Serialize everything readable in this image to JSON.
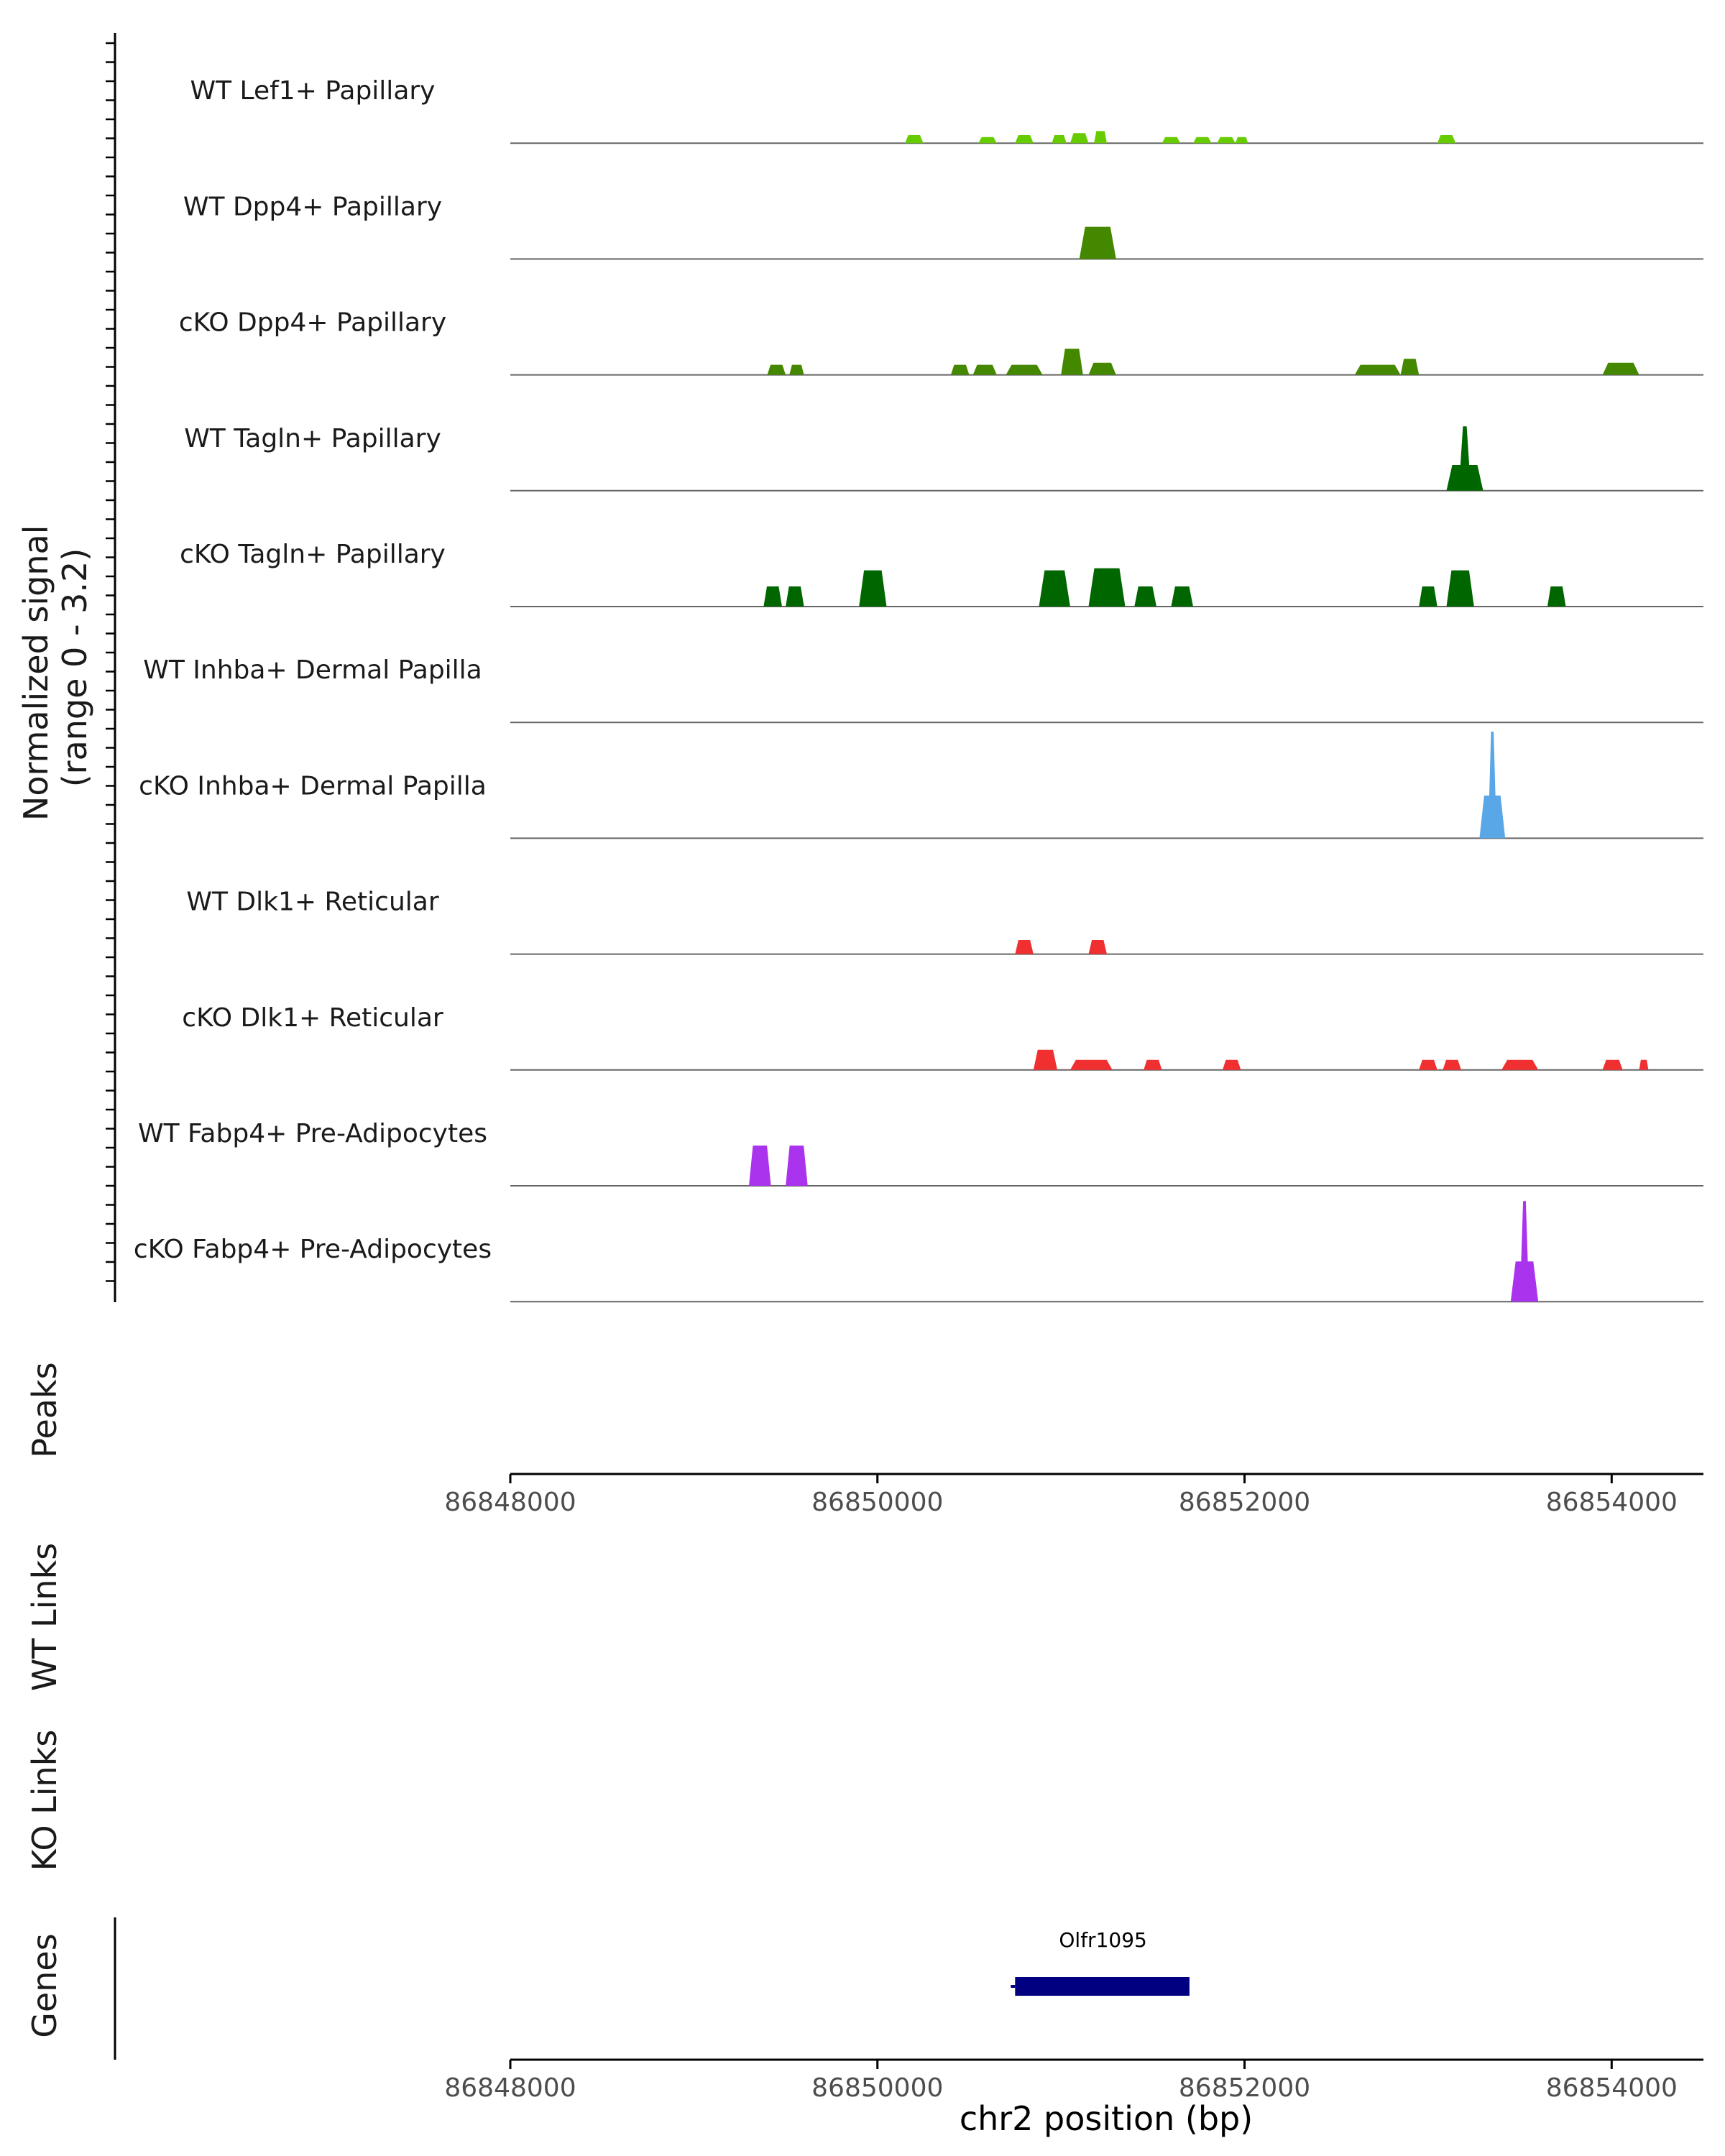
{
  "chart_data": {
    "type": "area",
    "title": "",
    "xlabel": "chr2 position (bp)",
    "coverage_ylabel": "Normalized signal\n(range 0 - 3.2)",
    "coverage_ylim": [
      0,
      3.2
    ],
    "xlim": [
      86848000,
      86854500
    ],
    "x_ticks": [
      86848000,
      86850000,
      86852000,
      86854000
    ],
    "x_tick_labels": [
      "86848000",
      "86850000",
      "86852000",
      "86854000"
    ],
    "series": [
      {
        "name": "WT Lef1+ Papillary",
        "color": "#66CC00",
        "peaks": [
          [
            86850150,
            86850250,
            0.4
          ],
          [
            86850550,
            86850650,
            0.3
          ],
          [
            86850750,
            86850850,
            0.4
          ],
          [
            86850950,
            86851030,
            0.4
          ],
          [
            86851050,
            86851150,
            0.5
          ],
          [
            86851180,
            86851250,
            0.6
          ],
          [
            86851550,
            86851650,
            0.3
          ],
          [
            86851720,
            86851820,
            0.3
          ],
          [
            86851850,
            86851950,
            0.3
          ],
          [
            86851950,
            86852020,
            0.3
          ],
          [
            86853050,
            86853150,
            0.4
          ]
        ]
      },
      {
        "name": "WT Dpp4+ Papillary",
        "color": "#448800",
        "peaks": [
          [
            86851100,
            86851300,
            1.6
          ]
        ]
      },
      {
        "name": "cKO Dpp4+ Papillary",
        "color": "#448800",
        "peaks": [
          [
            86849400,
            86849500,
            0.5
          ],
          [
            86849520,
            86849600,
            0.5
          ],
          [
            86850400,
            86850500,
            0.5
          ],
          [
            86850520,
            86850650,
            0.5
          ],
          [
            86850700,
            86850900,
            0.5
          ],
          [
            86851000,
            86851120,
            1.3
          ],
          [
            86851150,
            86851300,
            0.6
          ],
          [
            86852600,
            86852850,
            0.5
          ],
          [
            86852850,
            86852950,
            0.8
          ],
          [
            86853950,
            86854150,
            0.6
          ]
        ]
      },
      {
        "name": "WT Tagln+ Papillary",
        "color": "#006600",
        "peaks": [
          [
            86853100,
            86853300,
            3.2
          ]
        ]
      },
      {
        "name": "cKO Tagln+ Papillary",
        "color": "#006600",
        "peaks": [
          [
            86849380,
            86849480,
            1.0
          ],
          [
            86849500,
            86849600,
            1.0
          ],
          [
            86849900,
            86850050,
            1.8
          ],
          [
            86850880,
            86851050,
            1.8
          ],
          [
            86851150,
            86851350,
            1.9
          ],
          [
            86851400,
            86851520,
            1.0
          ],
          [
            86851600,
            86851720,
            1.0
          ],
          [
            86852950,
            86853050,
            1.0
          ],
          [
            86853100,
            86853250,
            1.8
          ],
          [
            86853650,
            86853750,
            1.0
          ]
        ]
      },
      {
        "name": "WT Inhba+ Dermal Papilla",
        "color": "#5AA7E8",
        "peaks": []
      },
      {
        "name": "cKO Inhba+ Dermal Papilla",
        "color": "#5AA7E8",
        "peaks": [
          [
            86853280,
            86853420,
            5.3
          ]
        ]
      },
      {
        "name": "WT Dlk1+ Reticular",
        "color": "#F03030",
        "peaks": [
          [
            86850750,
            86850850,
            0.7
          ],
          [
            86851150,
            86851250,
            0.7
          ]
        ]
      },
      {
        "name": "cKO Dlk1+ Reticular",
        "color": "#F03030",
        "peaks": [
          [
            86850850,
            86850980,
            1.0
          ],
          [
            86851050,
            86851280,
            0.5
          ],
          [
            86851450,
            86851550,
            0.5
          ],
          [
            86851880,
            86851980,
            0.5
          ],
          [
            86852950,
            86853050,
            0.5
          ],
          [
            86853080,
            86853180,
            0.5
          ],
          [
            86853400,
            86853600,
            0.5
          ],
          [
            86853950,
            86854060,
            0.5
          ],
          [
            86854150,
            86854200,
            0.5
          ]
        ]
      },
      {
        "name": "WT Fabp4+ Pre-Adipocytes",
        "color": "#AA33EE",
        "peaks": [
          [
            86849300,
            86849420,
            2.0
          ],
          [
            86849500,
            86849620,
            2.0
          ]
        ]
      },
      {
        "name": "cKO Fabp4+ Pre-Adipocytes",
        "color": "#AA33EE",
        "peaks": [
          [
            86853450,
            86853600,
            5.0
          ]
        ]
      }
    ],
    "panels": {
      "peaks": "Peaks",
      "wt_links": "WT Links",
      "ko_links": "KO Links",
      "genes": "Genes"
    },
    "genes": [
      {
        "name": "Olfr1095",
        "start": 86850750,
        "end": 86851700,
        "strand": "+",
        "color": "#000080"
      }
    ]
  }
}
